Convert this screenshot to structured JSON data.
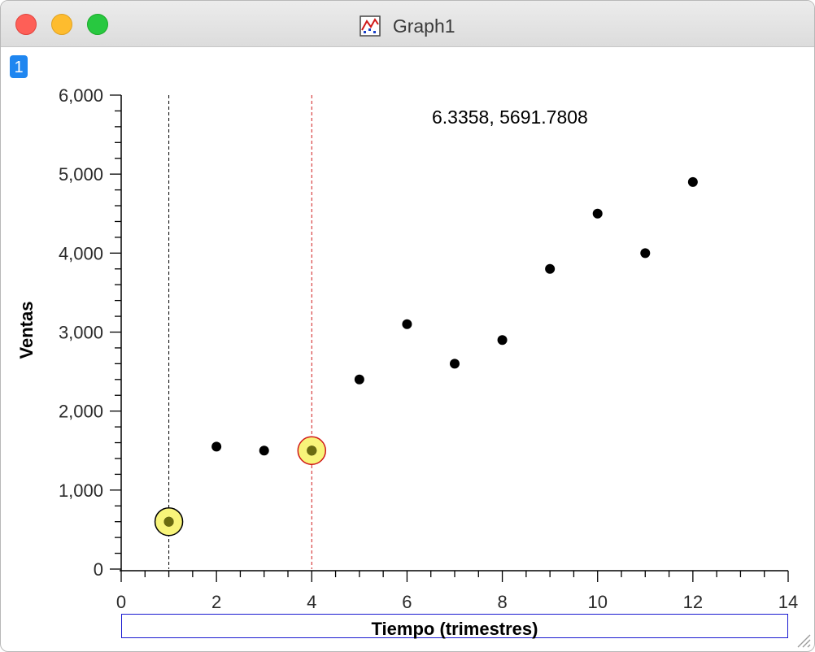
{
  "window": {
    "title": "Graph1",
    "badge": "1"
  },
  "cursor_readout": "6.3358, 5691.7808",
  "icons": {
    "close": "close-button",
    "minimize": "minimize-button",
    "maximize": "zoom-button",
    "graph": "graph-icon",
    "resize": "resize-grip-icon"
  },
  "colors": {
    "point": "#000000",
    "marker_fill": "#f8f47a",
    "cursor_a": "#000000",
    "cursor_b": "#d01818",
    "xlabel_border": "#1a1ad0"
  },
  "chart_data": {
    "type": "scatter",
    "xlabel": "Tiempo (trimestres)",
    "ylabel": "Ventas",
    "xlim": [
      0,
      14
    ],
    "ylim": [
      0,
      6000
    ],
    "x_ticks": [
      0,
      2,
      4,
      6,
      8,
      10,
      12,
      14
    ],
    "x_tick_labels": [
      "0",
      "2",
      "4",
      "6",
      "8",
      "10",
      "12",
      "14"
    ],
    "y_ticks": [
      0,
      1000,
      2000,
      3000,
      4000,
      5000,
      6000
    ],
    "y_tick_labels": [
      "0",
      "1,000",
      "2,000",
      "3,000",
      "4,000",
      "5,000",
      "6,000"
    ],
    "points": [
      {
        "x": 1,
        "y": 600
      },
      {
        "x": 2,
        "y": 1550
      },
      {
        "x": 3,
        "y": 1500
      },
      {
        "x": 4,
        "y": 1500
      },
      {
        "x": 5,
        "y": 2400
      },
      {
        "x": 6,
        "y": 3100
      },
      {
        "x": 7,
        "y": 2600
      },
      {
        "x": 8,
        "y": 2900
      },
      {
        "x": 9,
        "y": 3800
      },
      {
        "x": 10,
        "y": 4500
      },
      {
        "x": 11,
        "y": 4000
      },
      {
        "x": 12,
        "y": 4900
      }
    ],
    "cursors": [
      {
        "x": 1,
        "y": 600,
        "color": "#000000"
      },
      {
        "x": 4,
        "y": 1500,
        "color": "#d01818"
      }
    ],
    "grid": false
  }
}
